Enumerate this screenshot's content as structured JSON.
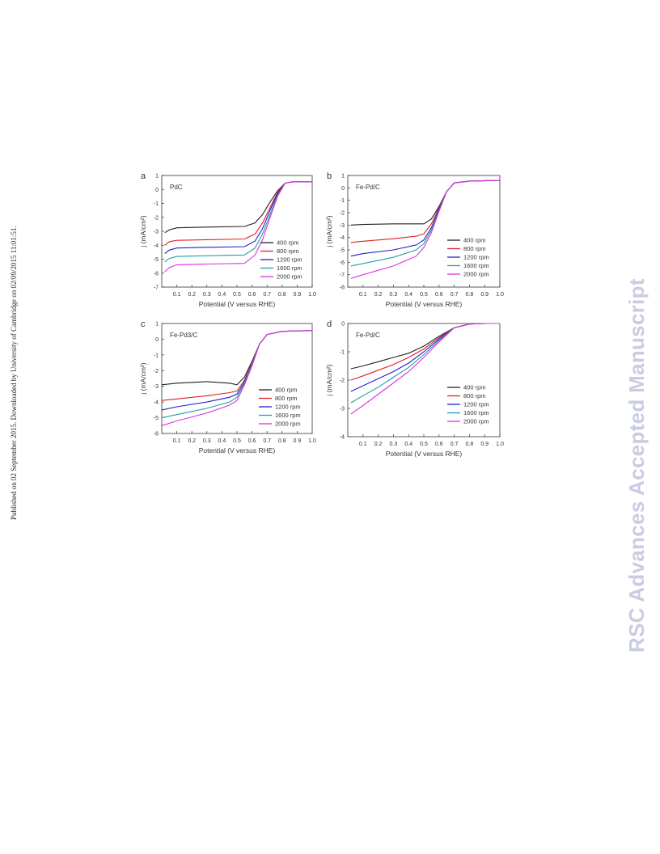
{
  "page": {
    "side_text": "Published on 02 September 2015. Downloaded by University of Cambridge on 02/09/2015 11:01:51.",
    "watermark": "RSC Advances Accepted Manuscript"
  },
  "legend_colors": [
    "#222222",
    "#e02020",
    "#2020d0",
    "#20a0a0",
    "#e030e0"
  ],
  "chart_data": [
    {
      "type": "line",
      "panel_label": "a",
      "inset_label": "PdC",
      "xlabel": "Potential (V versus RHE)",
      "ylabel": "j (mA/cm²)",
      "xlim": [
        0,
        1.0
      ],
      "ylim": [
        -7,
        1
      ],
      "x_ticks": [
        "0.1",
        "0.2",
        "0.3",
        "0.4",
        "0.5",
        "0.6",
        "0.7",
        "0.8",
        "0.9",
        "1.0"
      ],
      "y_ticks": [
        "1",
        "0",
        "-1",
        "-2",
        "-3",
        "-4",
        "-5",
        "-6",
        "-7"
      ],
      "legend_position": "bottom-right",
      "series": [
        {
          "name": "400 rpm",
          "color": "#222222",
          "x": [
            0.02,
            0.05,
            0.1,
            0.3,
            0.55,
            0.62,
            0.67,
            0.72,
            0.77,
            0.82,
            0.87,
            1.0
          ],
          "y": [
            -3.1,
            -2.9,
            -2.75,
            -2.7,
            -2.65,
            -2.4,
            -1.8,
            -0.9,
            -0.1,
            0.45,
            0.55,
            0.55
          ]
        },
        {
          "name": "800 rpm",
          "color": "#e02020",
          "x": [
            0.02,
            0.05,
            0.1,
            0.3,
            0.55,
            0.62,
            0.67,
            0.72,
            0.77,
            0.82,
            0.87,
            1.0
          ],
          "y": [
            -4.0,
            -3.75,
            -3.65,
            -3.6,
            -3.55,
            -3.2,
            -2.4,
            -1.3,
            -0.2,
            0.45,
            0.55,
            0.55
          ]
        },
        {
          "name": "1200 rpm",
          "color": "#2020d0",
          "x": [
            0.02,
            0.05,
            0.1,
            0.3,
            0.55,
            0.62,
            0.67,
            0.72,
            0.77,
            0.82,
            0.87,
            1.0
          ],
          "y": [
            -4.6,
            -4.35,
            -4.2,
            -4.15,
            -4.1,
            -3.7,
            -2.8,
            -1.5,
            -0.3,
            0.45,
            0.55,
            0.55
          ]
        },
        {
          "name": "1600 rpm",
          "color": "#20a0a0",
          "x": [
            0.02,
            0.05,
            0.1,
            0.3,
            0.55,
            0.62,
            0.67,
            0.72,
            0.77,
            0.82,
            0.87,
            1.0
          ],
          "y": [
            -5.2,
            -4.95,
            -4.8,
            -4.75,
            -4.7,
            -4.2,
            -3.2,
            -1.8,
            -0.4,
            0.45,
            0.55,
            0.55
          ]
        },
        {
          "name": "2000 rpm",
          "color": "#e030e0",
          "x": [
            0.02,
            0.05,
            0.1,
            0.3,
            0.55,
            0.62,
            0.67,
            0.72,
            0.77,
            0.82,
            0.87,
            1.0
          ],
          "y": [
            -5.9,
            -5.6,
            -5.4,
            -5.35,
            -5.3,
            -4.7,
            -3.6,
            -2.0,
            -0.5,
            0.45,
            0.55,
            0.55
          ]
        }
      ]
    },
    {
      "type": "line",
      "panel_label": "b",
      "inset_label": "Fe-Pd/C",
      "xlabel": "Potential (V versus RHE)",
      "ylabel": "j (mA/cm²)",
      "xlim": [
        0,
        1.0
      ],
      "ylim": [
        -8,
        1
      ],
      "x_ticks": [
        "0.1",
        "0.2",
        "0.3",
        "0.4",
        "0.5",
        "0.6",
        "0.7",
        "0.8",
        "0.9",
        "1.0"
      ],
      "y_ticks": [
        "1",
        "0",
        "-1",
        "-2",
        "-3",
        "-4",
        "-5",
        "-6",
        "-7",
        "-8"
      ],
      "legend_position": "bottom-right",
      "series": [
        {
          "name": "400 rpm",
          "color": "#222222",
          "x": [
            0.02,
            0.1,
            0.3,
            0.45,
            0.5,
            0.55,
            0.6,
            0.65,
            0.7,
            0.8,
            1.0
          ],
          "y": [
            -3.0,
            -2.95,
            -2.9,
            -2.9,
            -2.9,
            -2.5,
            -1.5,
            -0.3,
            0.4,
            0.55,
            0.6
          ]
        },
        {
          "name": "800 rpm",
          "color": "#e02020",
          "x": [
            0.02,
            0.1,
            0.3,
            0.45,
            0.5,
            0.55,
            0.6,
            0.65,
            0.7,
            0.8,
            1.0
          ],
          "y": [
            -4.4,
            -4.3,
            -4.1,
            -3.9,
            -3.7,
            -2.9,
            -1.6,
            -0.3,
            0.4,
            0.55,
            0.6
          ]
        },
        {
          "name": "1200 rpm",
          "color": "#2020d0",
          "x": [
            0.02,
            0.1,
            0.3,
            0.45,
            0.5,
            0.55,
            0.6,
            0.65,
            0.7,
            0.8,
            1.0
          ],
          "y": [
            -5.5,
            -5.3,
            -5.0,
            -4.6,
            -4.2,
            -3.2,
            -1.7,
            -0.3,
            0.4,
            0.55,
            0.6
          ]
        },
        {
          "name": "1600 rpm",
          "color": "#20a0a0",
          "x": [
            0.02,
            0.1,
            0.3,
            0.45,
            0.5,
            0.55,
            0.6,
            0.65,
            0.7,
            0.8,
            1.0
          ],
          "y": [
            -6.3,
            -6.1,
            -5.6,
            -5.0,
            -4.5,
            -3.4,
            -1.8,
            -0.3,
            0.4,
            0.55,
            0.6
          ]
        },
        {
          "name": "2000 rpm",
          "color": "#e030e0",
          "x": [
            0.02,
            0.1,
            0.3,
            0.45,
            0.5,
            0.55,
            0.6,
            0.65,
            0.7,
            0.8,
            1.0
          ],
          "y": [
            -7.3,
            -7.0,
            -6.3,
            -5.5,
            -4.8,
            -3.6,
            -1.9,
            -0.3,
            0.4,
            0.55,
            0.6
          ]
        }
      ]
    },
    {
      "type": "line",
      "panel_label": "c",
      "inset_label": "Fe-Pd3/C",
      "xlabel": "Potential (V versus RHE)",
      "ylabel": "j (mA/cm²)",
      "xlim": [
        0,
        1.0
      ],
      "ylim": [
        -6,
        1
      ],
      "x_ticks": [
        "0.1",
        "0.2",
        "0.3",
        "0.4",
        "0.5",
        "0.6",
        "0.7",
        "0.8",
        "0.9",
        "1.0"
      ],
      "y_ticks": [
        "1",
        "0",
        "-1",
        "-2",
        "-3",
        "-4",
        "-5",
        "-6"
      ],
      "legend_position": "bottom-right",
      "series": [
        {
          "name": "400 rpm",
          "color": "#222222",
          "x": [
            0.0,
            0.1,
            0.3,
            0.45,
            0.5,
            0.55,
            0.6,
            0.65,
            0.7,
            0.8,
            1.0
          ],
          "y": [
            -2.9,
            -2.8,
            -2.7,
            -2.8,
            -2.9,
            -2.4,
            -1.4,
            -0.3,
            0.3,
            0.5,
            0.55
          ]
        },
        {
          "name": "800 rpm",
          "color": "#e02020",
          "x": [
            0.0,
            0.1,
            0.3,
            0.45,
            0.5,
            0.55,
            0.6,
            0.65,
            0.7,
            0.8,
            1.0
          ],
          "y": [
            -3.9,
            -3.8,
            -3.6,
            -3.4,
            -3.3,
            -2.6,
            -1.5,
            -0.3,
            0.3,
            0.5,
            0.55
          ]
        },
        {
          "name": "1200 rpm",
          "color": "#2020d0",
          "x": [
            0.0,
            0.1,
            0.3,
            0.45,
            0.5,
            0.55,
            0.6,
            0.65,
            0.7,
            0.8,
            1.0
          ],
          "y": [
            -4.5,
            -4.3,
            -4.0,
            -3.7,
            -3.5,
            -2.7,
            -1.6,
            -0.3,
            0.3,
            0.5,
            0.55
          ]
        },
        {
          "name": "1600 rpm",
          "color": "#20a0a0",
          "x": [
            0.0,
            0.1,
            0.3,
            0.45,
            0.5,
            0.55,
            0.6,
            0.65,
            0.7,
            0.8,
            1.0
          ],
          "y": [
            -5.0,
            -4.8,
            -4.4,
            -4.0,
            -3.7,
            -2.8,
            -1.6,
            -0.3,
            0.3,
            0.5,
            0.55
          ]
        },
        {
          "name": "2000 rpm",
          "color": "#e030e0",
          "x": [
            0.0,
            0.1,
            0.3,
            0.45,
            0.5,
            0.55,
            0.6,
            0.65,
            0.7,
            0.8,
            1.0
          ],
          "y": [
            -5.5,
            -5.2,
            -4.7,
            -4.2,
            -3.9,
            -2.9,
            -1.7,
            -0.3,
            0.3,
            0.5,
            0.55
          ]
        }
      ]
    },
    {
      "type": "line",
      "panel_label": "d",
      "inset_label": "Fe-Pd/C",
      "xlabel": "Potential (V versus RHE)",
      "ylabel": "j (mA/cm²)",
      "xlim": [
        0,
        1.0
      ],
      "ylim": [
        -4,
        0
      ],
      "x_ticks": [
        "0.1",
        "0.2",
        "0.3",
        "0.4",
        "0.5",
        "0.6",
        "0.7",
        "0.8",
        "0.9",
        "1.0"
      ],
      "y_ticks": [
        "0",
        "-1",
        "-2",
        "-3",
        "-4"
      ],
      "legend_position": "bottom-right",
      "series": [
        {
          "name": "400 rpm",
          "color": "#222222",
          "x": [
            0.02,
            0.1,
            0.2,
            0.3,
            0.4,
            0.5,
            0.6,
            0.7,
            0.8,
            0.9,
            1.0
          ],
          "y": [
            -1.6,
            -1.5,
            -1.35,
            -1.2,
            -1.05,
            -0.8,
            -0.45,
            -0.15,
            -0.02,
            0.0,
            0.0
          ]
        },
        {
          "name": "800 rpm",
          "color": "#e02020",
          "x": [
            0.02,
            0.1,
            0.2,
            0.3,
            0.4,
            0.5,
            0.6,
            0.7,
            0.8,
            0.9,
            1.0
          ],
          "y": [
            -2.0,
            -1.85,
            -1.65,
            -1.45,
            -1.2,
            -0.9,
            -0.5,
            -0.15,
            -0.02,
            0.0,
            0.0
          ]
        },
        {
          "name": "1200 rpm",
          "color": "#2020d0",
          "x": [
            0.02,
            0.1,
            0.2,
            0.3,
            0.4,
            0.5,
            0.6,
            0.7,
            0.8,
            0.9,
            1.0
          ],
          "y": [
            -2.4,
            -2.2,
            -1.95,
            -1.7,
            -1.4,
            -1.0,
            -0.55,
            -0.15,
            -0.02,
            0.0,
            0.0
          ]
        },
        {
          "name": "1600 rpm",
          "color": "#20a0a0",
          "x": [
            0.02,
            0.1,
            0.2,
            0.3,
            0.4,
            0.5,
            0.6,
            0.7,
            0.8,
            0.9,
            1.0
          ],
          "y": [
            -2.8,
            -2.55,
            -2.25,
            -1.9,
            -1.55,
            -1.1,
            -0.6,
            -0.15,
            -0.02,
            0.0,
            0.0
          ]
        },
        {
          "name": "2000 rpm",
          "color": "#e030e0",
          "x": [
            0.02,
            0.1,
            0.2,
            0.3,
            0.4,
            0.5,
            0.6,
            0.7,
            0.8,
            0.9,
            1.0
          ],
          "y": [
            -3.2,
            -2.9,
            -2.5,
            -2.1,
            -1.7,
            -1.2,
            -0.65,
            -0.15,
            -0.02,
            0.0,
            0.0
          ]
        }
      ]
    }
  ]
}
